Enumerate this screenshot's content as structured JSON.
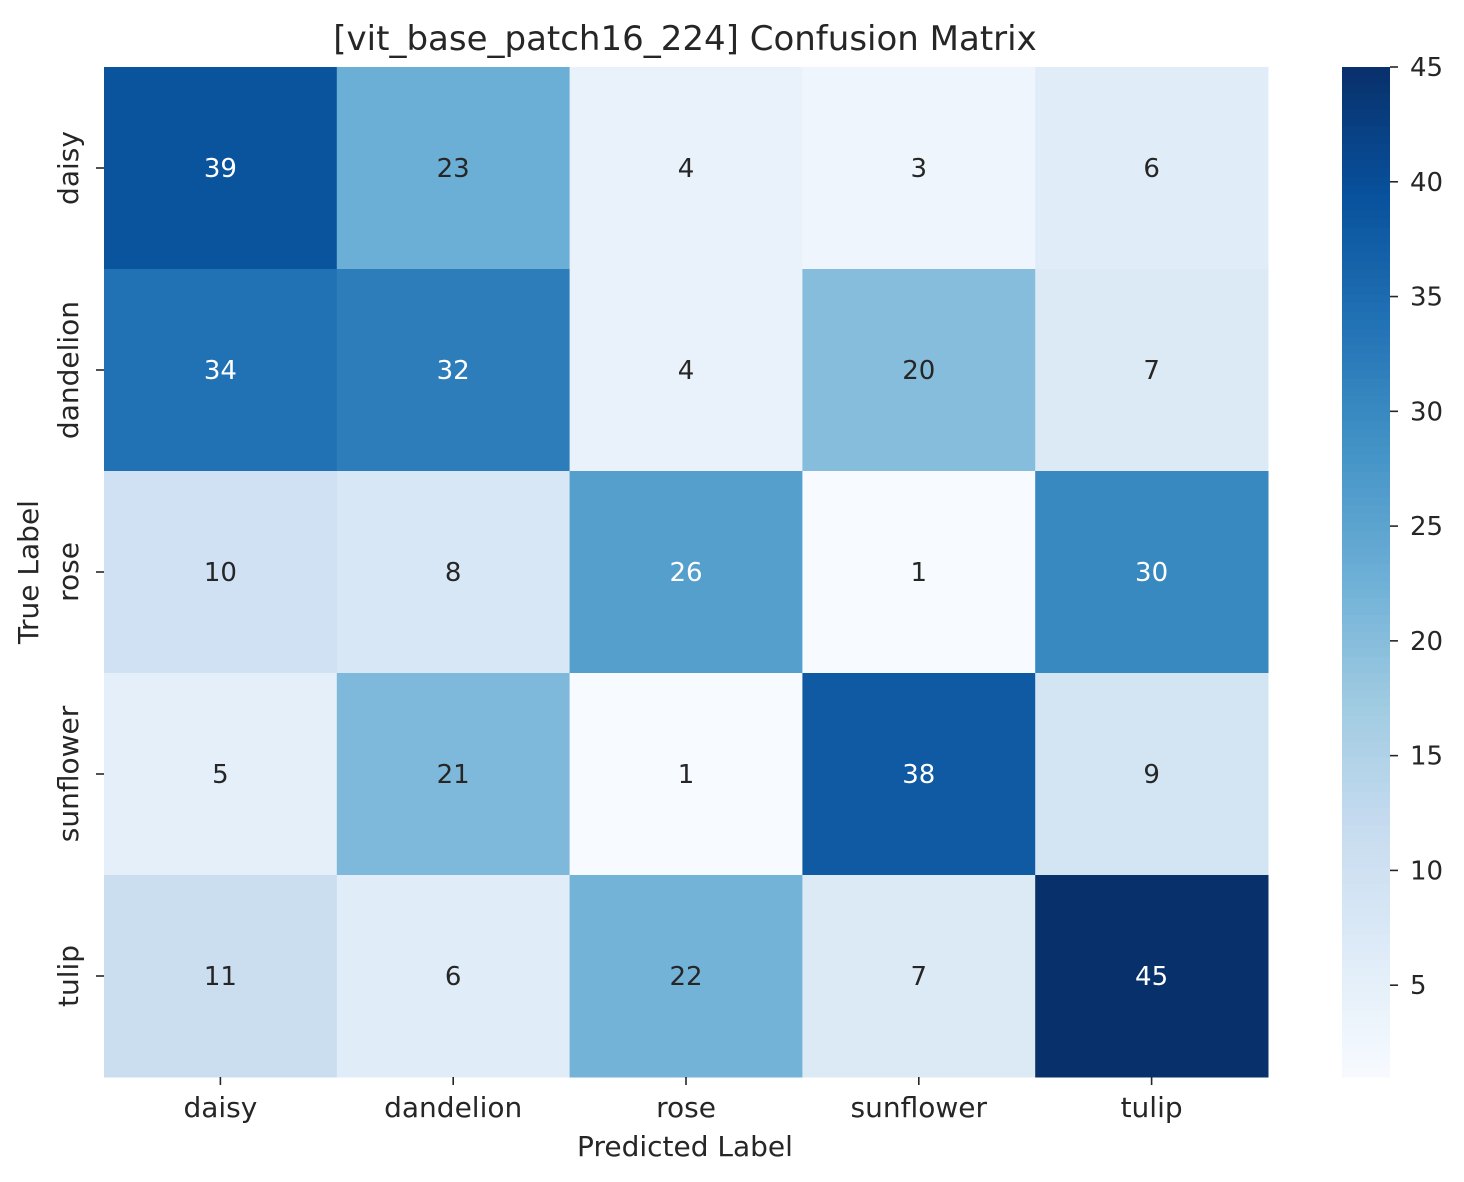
{
  "chart_data": {
    "type": "heatmap",
    "title": "[vit_base_patch16_224] Confusion Matrix",
    "xlabel": "Predicted Label",
    "ylabel": "True Label",
    "x_categories": [
      "daisy",
      "dandelion",
      "rose",
      "sunflower",
      "tulip"
    ],
    "y_categories": [
      "daisy",
      "dandelion",
      "rose",
      "sunflower",
      "tulip"
    ],
    "values": [
      [
        39,
        23,
        4,
        3,
        6
      ],
      [
        34,
        32,
        4,
        20,
        7
      ],
      [
        10,
        8,
        26,
        1,
        30
      ],
      [
        5,
        21,
        1,
        38,
        9
      ],
      [
        11,
        6,
        22,
        7,
        45
      ]
    ],
    "colormap": "Blues",
    "colorbar": {
      "range": [
        1,
        45
      ],
      "ticks": [
        5,
        10,
        15,
        20,
        25,
        30,
        35,
        40,
        45
      ]
    },
    "annotated": true
  }
}
